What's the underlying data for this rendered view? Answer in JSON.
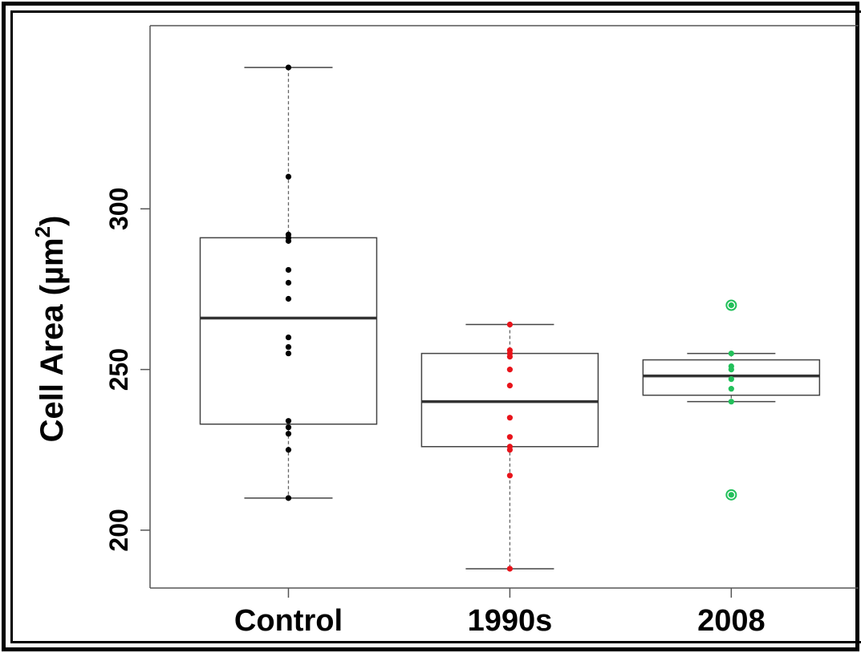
{
  "chart_data": {
    "type": "box",
    "title": "",
    "xlabel": "",
    "ylabel": "Cell Area (µm²)",
    "ylabel_main": "Cell Area (µm",
    "ylabel_sup": "2",
    "ylabel_close": ")",
    "ylim": [
      182,
      357
    ],
    "yticks": [
      200,
      250,
      300
    ],
    "ytick_labels": [
      "200",
      "250",
      "300"
    ],
    "grid": false,
    "categories": [
      "Control",
      "1990s",
      "2008"
    ],
    "boxes": [
      {
        "category": "Control",
        "color": "#000000",
        "whisker_low": 210,
        "q1": 233,
        "median": 266,
        "q3": 291,
        "whisker_high": 344,
        "points": [
          344,
          310,
          292,
          291,
          290,
          281,
          277,
          272,
          260,
          257,
          255,
          234,
          232,
          230,
          225,
          210
        ]
      },
      {
        "category": "1990s",
        "color": "#e8141b",
        "whisker_low": 188,
        "q1": 226,
        "median": 240,
        "q3": 255,
        "whisker_high": 264,
        "points": [
          264,
          256,
          255,
          254,
          250,
          245,
          235,
          229,
          226,
          225,
          217,
          188
        ]
      },
      {
        "category": "2008",
        "color": "#22c05a",
        "whisker_low": 240,
        "q1": 242,
        "median": 248,
        "q3": 253,
        "whisker_high": 255,
        "points": [
          255,
          251,
          250,
          247,
          244,
          240
        ],
        "outliers": [
          270,
          211
        ]
      }
    ]
  }
}
